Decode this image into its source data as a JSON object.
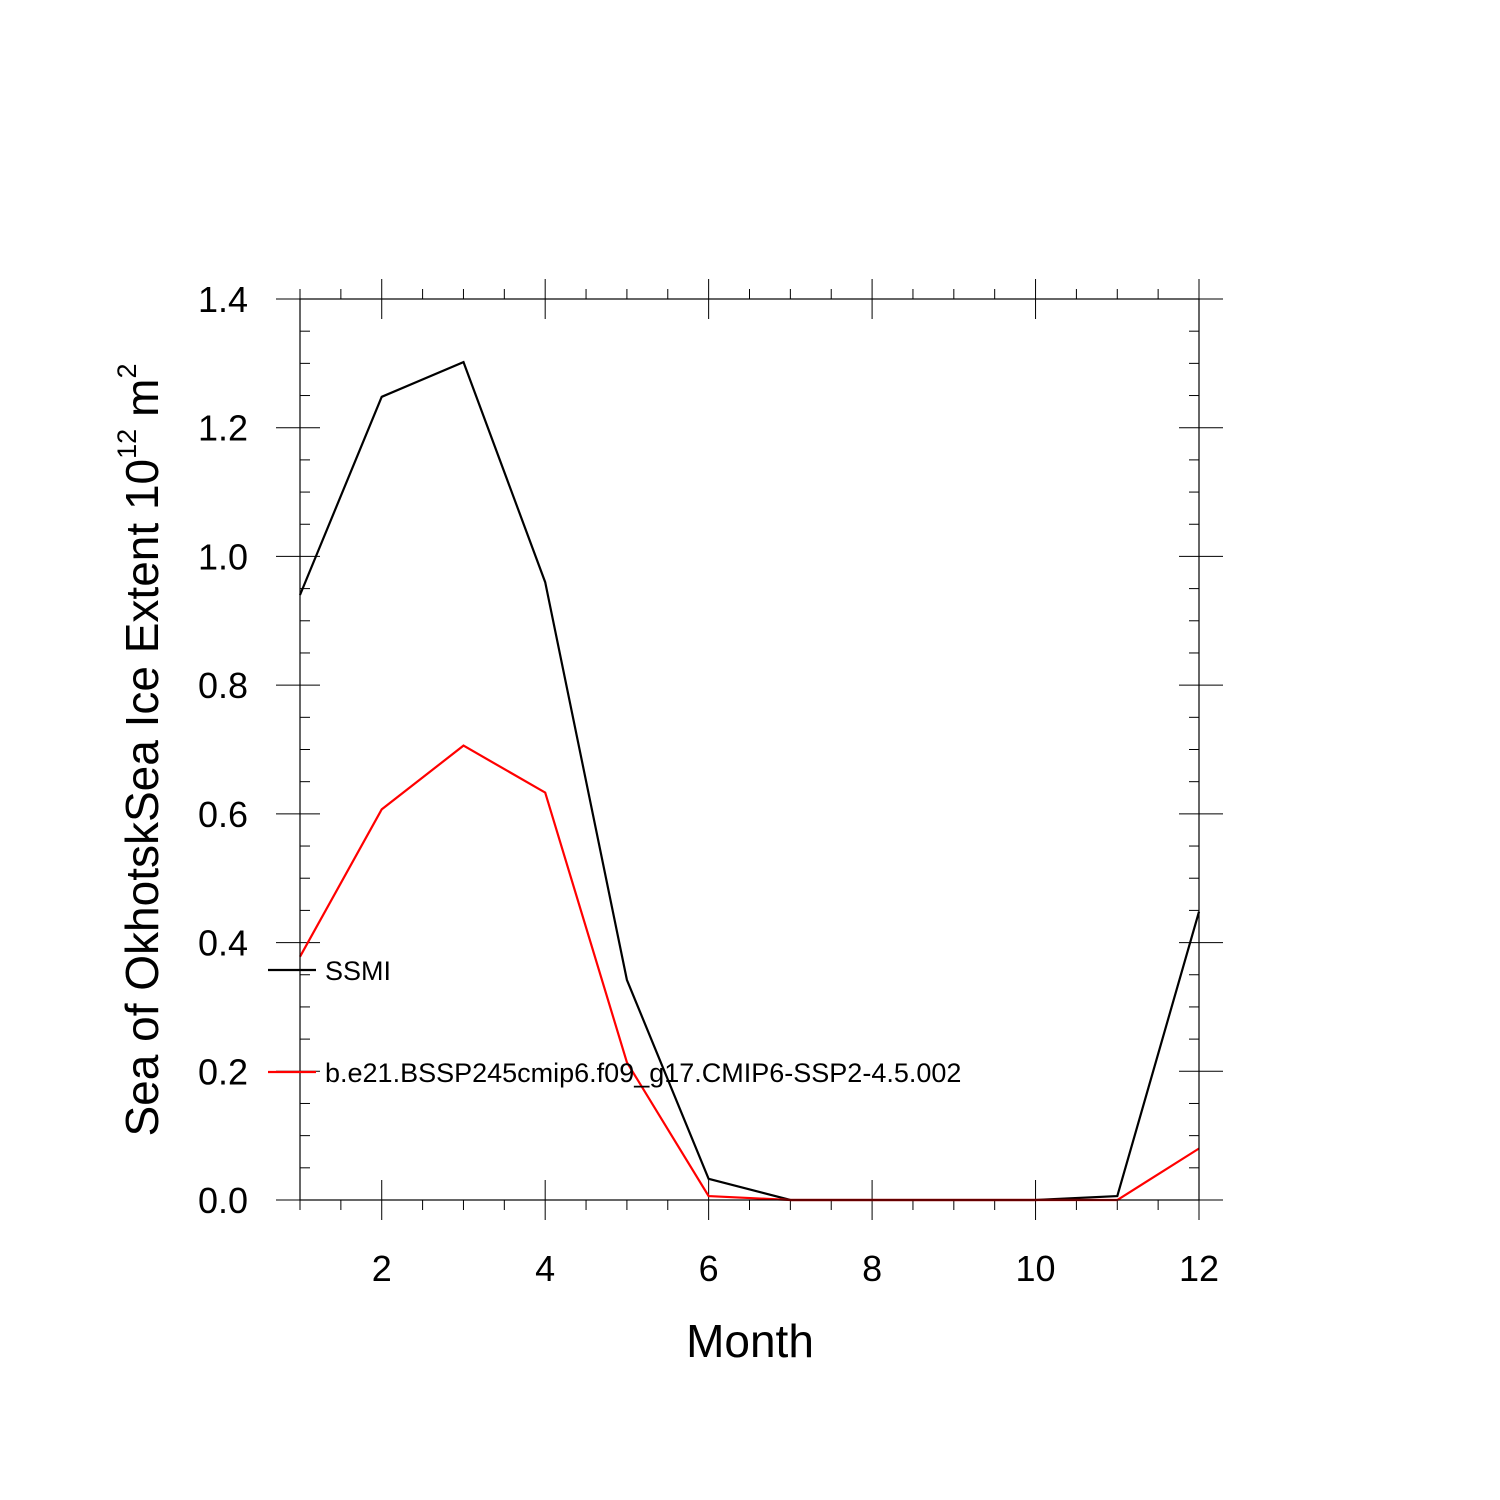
{
  "chart_data": {
    "type": "line",
    "title": "",
    "xlabel": "Month",
    "ylabel": "Sea of OkhotskSea Ice Extent 10",
    "ylabel_sup": "12",
    "ylabel_unit": "m",
    "ylabel_unit_sup": "2",
    "xlim": [
      1,
      12
    ],
    "ylim": [
      0.0,
      1.4
    ],
    "x_ticks": [
      2,
      4,
      6,
      8,
      10,
      12
    ],
    "x_tick_labels": [
      "2",
      "4",
      "6",
      "8",
      "10",
      "12"
    ],
    "y_ticks": [
      0.0,
      0.2,
      0.4,
      0.6,
      0.8,
      1.0,
      1.2,
      1.4
    ],
    "y_tick_labels": [
      "0.0",
      "0.2",
      "0.4",
      "0.6",
      "0.8",
      "1.0",
      "1.2",
      "1.4"
    ],
    "grid": false,
    "legend_placement": "left, inside plot",
    "x": [
      1,
      2,
      3,
      4,
      5,
      6,
      7,
      8,
      9,
      10,
      11,
      12
    ],
    "series": [
      {
        "name": "SSMI",
        "color": "#000000",
        "values": [
          0.94,
          1.248,
          1.302,
          0.96,
          0.342,
          0.033,
          0.0,
          0.0,
          0.0,
          0.0,
          0.006,
          0.448
        ]
      },
      {
        "name": "b.e21.BSSP245cmip6.f09_g17.CMIP6-SSP2-4.5.002",
        "color": "#ff0000",
        "values": [
          0.378,
          0.607,
          0.706,
          0.633,
          0.214,
          0.006,
          0.0,
          0.0,
          0.0,
          0.0,
          0.0,
          0.08
        ]
      }
    ]
  }
}
